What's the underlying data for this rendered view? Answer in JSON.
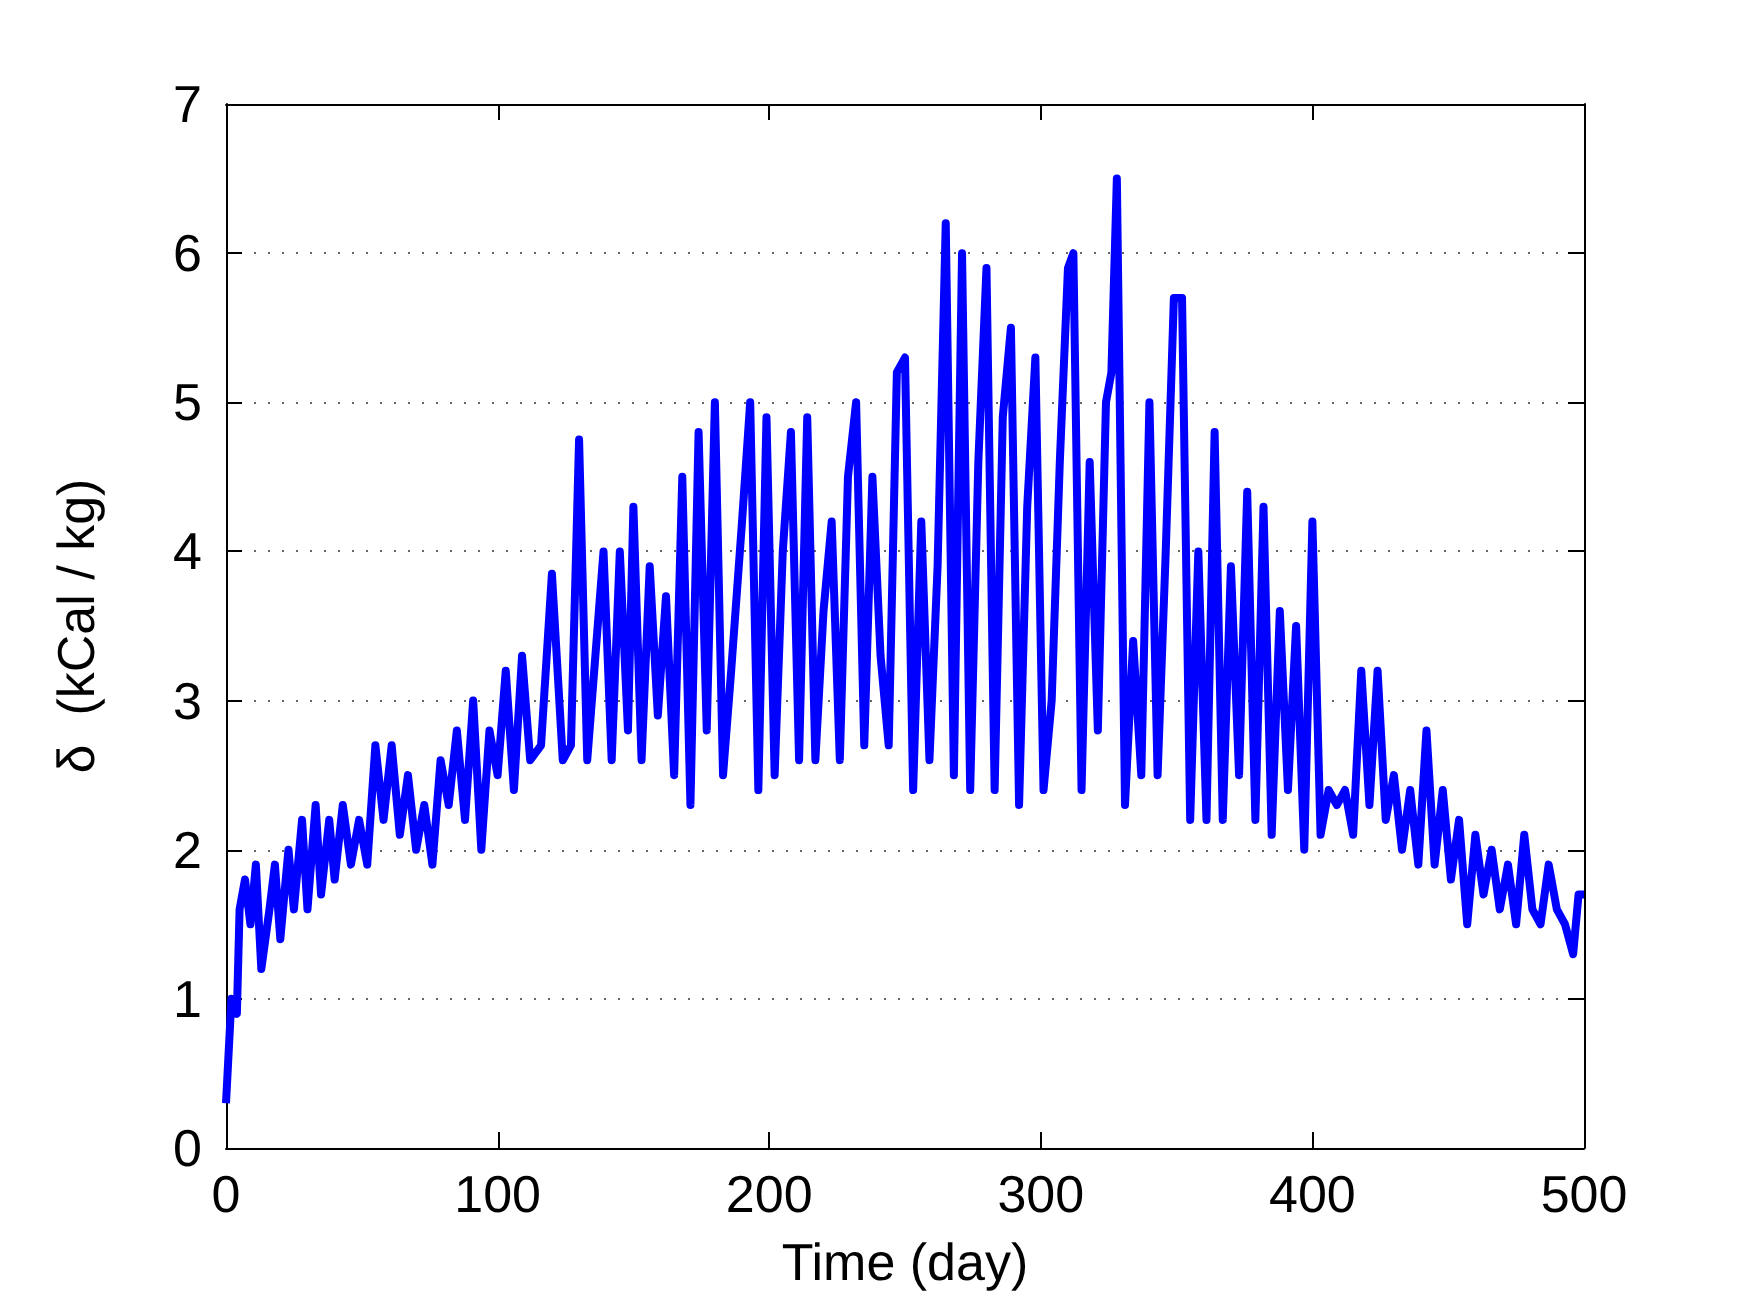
{
  "chart_data": {
    "type": "line",
    "xlabel": "Time (day)",
    "ylabel": "δ  (kCal / kg)",
    "x": [
      0,
      2,
      4,
      5,
      7,
      9,
      11,
      13,
      16,
      18,
      20,
      23,
      25,
      28,
      30,
      33,
      35,
      38,
      40,
      43,
      46,
      49,
      52,
      55,
      58,
      61,
      64,
      67,
      70,
      73,
      76,
      79,
      82,
      85,
      88,
      91,
      94,
      97,
      100,
      103,
      106,
      109,
      112,
      116,
      120,
      124,
      127,
      130,
      133,
      136,
      139,
      142,
      145,
      148,
      150,
      153,
      156,
      159,
      162,
      165,
      168,
      171,
      174,
      177,
      180,
      183,
      186,
      190,
      193,
      196,
      199,
      202,
      205,
      208,
      211,
      214,
      217,
      220,
      223,
      226,
      229,
      232,
      235,
      238,
      241,
      244,
      247,
      250,
      253,
      256,
      259,
      262,
      265,
      268,
      271,
      274,
      277,
      280,
      283,
      286,
      289,
      292,
      295,
      298,
      301,
      304,
      307,
      310,
      312,
      315,
      318,
      321,
      324,
      326,
      328,
      331,
      334,
      337,
      340,
      343,
      346,
      349,
      352,
      355,
      358,
      361,
      364,
      367,
      370,
      373,
      376,
      379,
      382,
      385,
      388,
      391,
      394,
      397,
      400,
      403,
      406,
      409,
      412,
      415,
      418,
      421,
      424,
      427,
      430,
      433,
      436,
      439,
      442,
      445,
      448,
      451,
      454,
      457,
      460,
      463,
      466,
      469,
      472,
      475,
      478,
      481,
      484,
      487,
      490,
      493,
      496,
      498,
      500
    ],
    "series": [
      {
        "color": "#0000ff",
        "values": [
          0.3,
          1.0,
          0.9,
          1.6,
          1.8,
          1.5,
          1.9,
          1.2,
          1.6,
          1.9,
          1.4,
          2.0,
          1.6,
          2.2,
          1.6,
          2.3,
          1.7,
          2.2,
          1.8,
          2.3,
          1.9,
          2.2,
          1.9,
          2.7,
          2.2,
          2.7,
          2.1,
          2.5,
          2.0,
          2.3,
          1.9,
          2.6,
          2.3,
          2.8,
          2.2,
          3.0,
          2.0,
          2.8,
          2.5,
          3.2,
          2.4,
          3.3,
          2.6,
          2.7,
          3.85,
          2.6,
          2.7,
          4.75,
          2.6,
          3.3,
          4.0,
          2.6,
          4.0,
          2.8,
          4.3,
          2.6,
          3.9,
          2.9,
          3.7,
          2.5,
          4.5,
          2.3,
          4.8,
          2.8,
          5.0,
          2.5,
          3.2,
          4.2,
          5.0,
          2.4,
          4.9,
          2.5,
          4.0,
          4.8,
          2.6,
          4.9,
          2.6,
          3.6,
          4.2,
          2.6,
          4.5,
          5.0,
          2.7,
          4.5,
          3.3,
          2.7,
          5.2,
          5.3,
          2.4,
          4.2,
          2.6,
          3.9,
          6.2,
          2.5,
          6.0,
          2.4,
          4.6,
          5.9,
          2.4,
          4.9,
          5.5,
          2.3,
          4.3,
          5.3,
          2.4,
          3.0,
          4.6,
          5.9,
          6.0,
          2.4,
          4.6,
          2.8,
          5.0,
          5.2,
          6.5,
          2.3,
          3.4,
          2.5,
          5.0,
          2.5,
          4.0,
          5.7,
          5.7,
          2.2,
          4.0,
          2.2,
          4.8,
          2.2,
          3.9,
          2.5,
          4.4,
          2.2,
          4.3,
          2.1,
          3.6,
          2.4,
          3.5,
          2.0,
          4.2,
          2.1,
          2.4,
          2.3,
          2.4,
          2.1,
          3.2,
          2.3,
          3.2,
          2.2,
          2.5,
          2.0,
          2.4,
          1.9,
          2.8,
          1.9,
          2.4,
          1.8,
          2.2,
          1.5,
          2.1,
          1.7,
          2.0,
          1.6,
          1.9,
          1.5,
          2.1,
          1.6,
          1.5,
          1.9,
          1.6,
          1.5,
          1.3,
          1.7,
          1.7
        ]
      }
    ],
    "xlim": [
      0,
      500
    ],
    "xticks": [
      0,
      100,
      200,
      300,
      400,
      500
    ],
    "ylim": [
      0,
      7
    ],
    "yticks": [
      0,
      1,
      2,
      3,
      4,
      5,
      6,
      7
    ],
    "grid": "y",
    "marker": "none",
    "line_style": "solid"
  }
}
